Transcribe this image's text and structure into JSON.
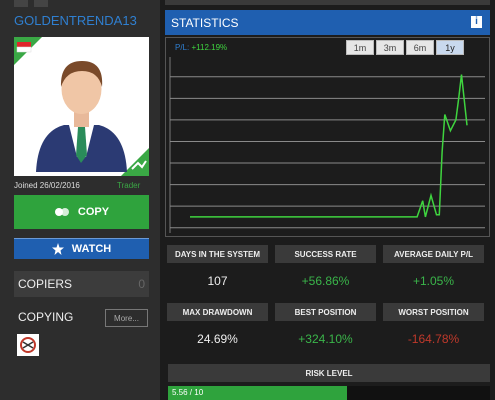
{
  "profile": {
    "username": "GOLDENTRENDA13",
    "joined": "Joined 26/02/2016",
    "role": "Trader"
  },
  "buttons": {
    "copy": "COPY",
    "watch": "WATCH"
  },
  "copiers": {
    "label": "COPIERS",
    "count": 0
  },
  "copying": {
    "label": "COPYING",
    "more": "More..."
  },
  "statistics": {
    "title": "STATISTICS",
    "pl_label": "P/L:",
    "pl_value": "+112.19%",
    "periods": [
      "1m",
      "3m",
      "6m",
      "1y"
    ],
    "selected_period": "1y"
  },
  "chart": {
    "type": "line",
    "color": "#3fd43f",
    "x": [
      0,
      82,
      84,
      85,
      87,
      89,
      90,
      91,
      92,
      94,
      96,
      97,
      98,
      100
    ],
    "values": [
      10,
      10,
      25,
      10,
      30,
      12,
      12,
      70,
      105,
      90,
      100,
      120,
      142,
      95
    ],
    "xlim": [
      0,
      100
    ],
    "ylim": [
      -4,
      150
    ],
    "gridlines": [
      0,
      20,
      40,
      60,
      80,
      100,
      120,
      140
    ]
  },
  "stats": [
    {
      "label": "DAYS IN THE SYSTEM",
      "value": "107",
      "tone": "neutral"
    },
    {
      "label": "SUCCESS RATE",
      "value": "+56.86%",
      "tone": "positive"
    },
    {
      "label": "AVERAGE DAILY P/L",
      "value": "+1.05%",
      "tone": "positive"
    },
    {
      "label": "MAX DRAWDOWN",
      "value": "24.69%",
      "tone": "neutral"
    },
    {
      "label": "BEST POSITION",
      "value": "+324.10%",
      "tone": "positive"
    },
    {
      "label": "WORST POSITION",
      "value": "-164.78%",
      "tone": "negative"
    }
  ],
  "risk": {
    "label": "RISK LEVEL",
    "value": 5.56,
    "max": 10,
    "value_label": "5.56 / 10"
  }
}
